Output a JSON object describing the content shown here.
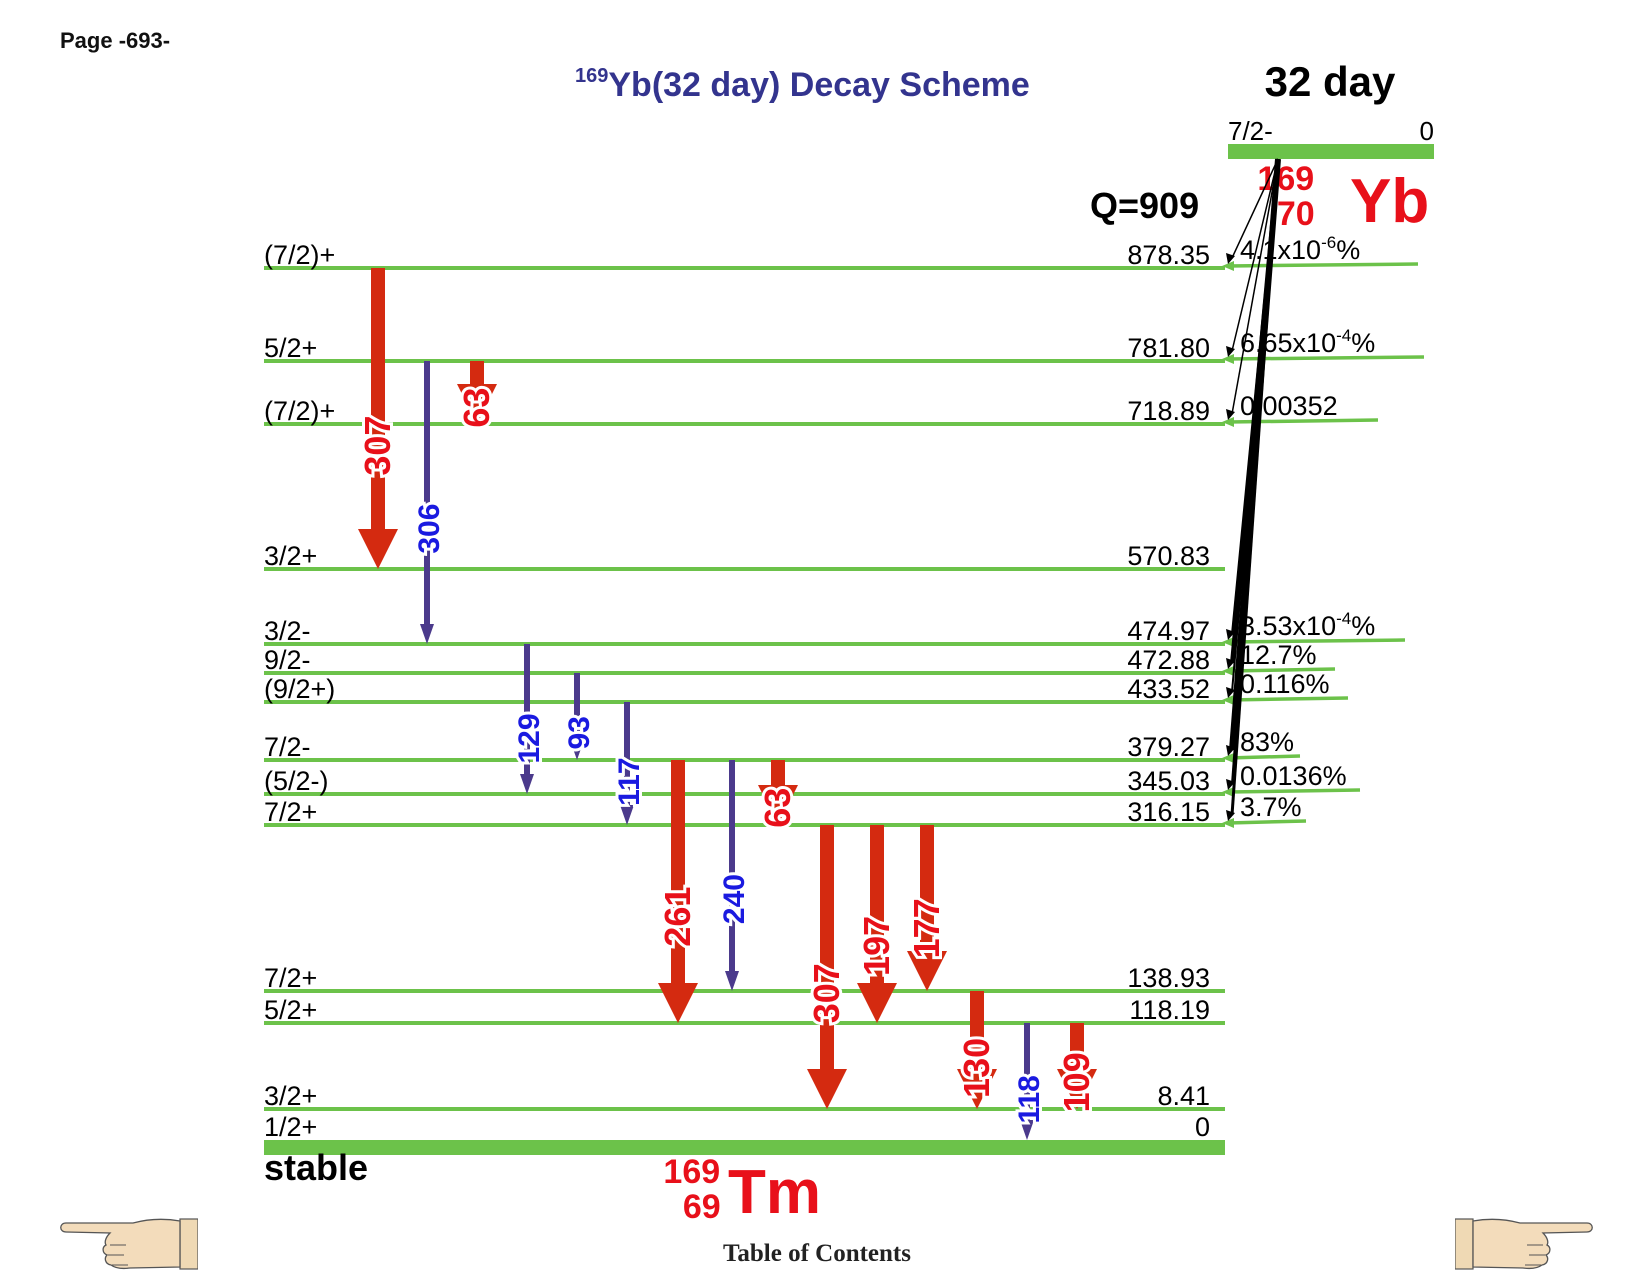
{
  "page": {
    "label": "Page -693-"
  },
  "title": {
    "mass": "169",
    "rest": "Yb(32 day) Decay Scheme"
  },
  "parent": {
    "halflife": "32 day",
    "spin": "7/2-",
    "energy": "0",
    "mass": "169",
    "z": "70",
    "symbol": "Yb",
    "q_label": "Q=909"
  },
  "daughter": {
    "mass": "169",
    "z": "69",
    "symbol": "Tm",
    "stable_label": "stable"
  },
  "levels": [
    {
      "spin": "(7/2)+",
      "energy": "878.35",
      "feed": "4.1x10",
      "feed_exp": "-6",
      "feed_suffix": "%"
    },
    {
      "spin": "5/2+",
      "energy": "781.80",
      "feed": "6.65x10",
      "feed_exp": "-4",
      "feed_suffix": "%"
    },
    {
      "spin": "(7/2)+",
      "energy": "718.89",
      "feed": "0.00352",
      "feed_exp": "",
      "feed_suffix": ""
    },
    {
      "spin": "3/2+",
      "energy": "570.83",
      "feed": "",
      "feed_exp": "",
      "feed_suffix": ""
    },
    {
      "spin": "3/2-",
      "energy": "474.97",
      "feed": "3.53x10",
      "feed_exp": "-4",
      "feed_suffix": "%"
    },
    {
      "spin": "9/2-",
      "energy": "472.88",
      "feed": "12.7%",
      "feed_exp": "",
      "feed_suffix": ""
    },
    {
      "spin": "(9/2+)",
      "energy": "433.52",
      "feed": "0.116%",
      "feed_exp": "",
      "feed_suffix": ""
    },
    {
      "spin": "7/2-",
      "energy": "379.27",
      "feed": "83%",
      "feed_exp": "",
      "feed_suffix": ""
    },
    {
      "spin": "(5/2-)",
      "energy": "345.03",
      "feed": "0.0136%",
      "feed_exp": "",
      "feed_suffix": ""
    },
    {
      "spin": "7/2+",
      "energy": "316.15",
      "feed": "3.7%",
      "feed_exp": "",
      "feed_suffix": ""
    },
    {
      "spin": "7/2+",
      "energy": "138.93",
      "feed": "",
      "feed_exp": "",
      "feed_suffix": ""
    },
    {
      "spin": "5/2+",
      "energy": "118.19",
      "feed": "",
      "feed_exp": "",
      "feed_suffix": ""
    },
    {
      "spin": "3/2+",
      "energy": "8.41",
      "feed": "",
      "feed_exp": "",
      "feed_suffix": ""
    },
    {
      "spin": "1/2+",
      "energy": "0",
      "feed": "",
      "feed_exp": "",
      "feed_suffix": ""
    }
  ],
  "transitions": [
    {
      "label": "307",
      "from": "878.35",
      "to": "570.83",
      "type": "strong"
    },
    {
      "label": "306",
      "from": "781.80",
      "to": "474.97",
      "type": "weak"
    },
    {
      "label": "63",
      "from": "781.80",
      "to": "718.89",
      "type": "strong"
    },
    {
      "label": "129",
      "from": "474.97",
      "to": "345.03",
      "type": "weak"
    },
    {
      "label": "93",
      "from": "472.88",
      "to": "379.27",
      "type": "weak"
    },
    {
      "label": "117",
      "from": "433.52",
      "to": "316.15",
      "type": "weak"
    },
    {
      "label": "261",
      "from": "379.27",
      "to": "118.19",
      "type": "strong"
    },
    {
      "label": "240",
      "from": "379.27",
      "to": "138.93",
      "type": "weak"
    },
    {
      "label": "63",
      "from": "379.27",
      "to": "316.15",
      "type": "strong"
    },
    {
      "label": "307",
      "from": "316.15",
      "to": "8.41",
      "type": "strong"
    },
    {
      "label": "197",
      "from": "316.15",
      "to": "118.19",
      "type": "strong"
    },
    {
      "label": "177",
      "from": "316.15",
      "to": "138.93",
      "type": "strong"
    },
    {
      "label": "130",
      "from": "138.93",
      "to": "8.41",
      "type": "strong"
    },
    {
      "label": "118",
      "from": "118.19",
      "to": "0",
      "type": "weak"
    },
    {
      "label": "109",
      "from": "118.19",
      "to": "8.41",
      "type": "strong"
    }
  ],
  "colors": {
    "level": "#6cc24a",
    "strong": "#d42a10",
    "strong_text": "#e8101a",
    "weak": "#4b3a8c",
    "weak_text": "#1a1ae0",
    "title": "#33348e",
    "feeding": "#000000"
  },
  "nav": {
    "toc": "Table of Contents",
    "prev_icon": "pointing-hand-left",
    "next_icon": "pointing-hand-right"
  }
}
